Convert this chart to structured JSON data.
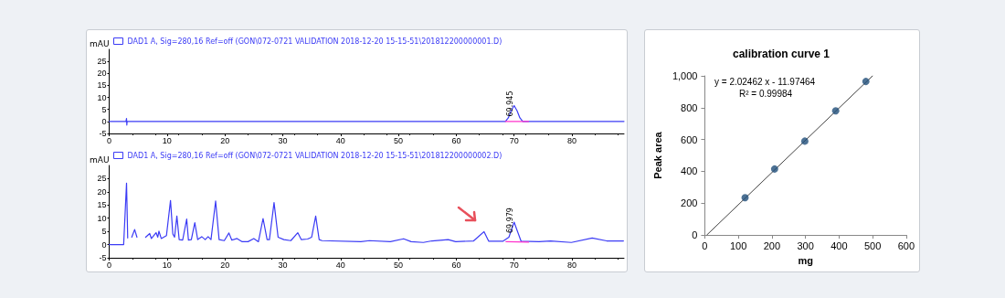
{
  "chart_data": [
    {
      "type": "line",
      "ylabel": "mAU",
      "legend": "top left",
      "grid": false,
      "marker": "none",
      "line_style": "solid",
      "xlim": [
        0,
        89
      ],
      "xticks": [
        0,
        10,
        20,
        30,
        40,
        50,
        60,
        70,
        80
      ],
      "ylim": [
        -5,
        30
      ],
      "yticks": [
        -5,
        0,
        5,
        10,
        15,
        20,
        25
      ],
      "annotations": [
        {
          "text": "69.945",
          "x": 70,
          "y": 6.6
        }
      ],
      "series": [
        {
          "name": "DAD1 A, Sig=280,16 Ref=off (GON\\072-0721 VALIDATION 2018-12-20 15-15-51\\201812200000001.D)",
          "color": "#3b3bf5",
          "x": [
            0,
            2.9,
            3.0,
            3.05,
            3.1,
            68.5,
            69,
            69.5,
            70,
            70.5,
            71,
            71.5,
            89
          ],
          "values": [
            0,
            0,
            1.2,
            -1.5,
            0,
            0,
            1.5,
            4.5,
            6.6,
            4.5,
            1.5,
            0,
            0
          ]
        },
        {
          "color": "#ff33cc",
          "x": [
            68.5,
            72.5
          ],
          "values": [
            0,
            0
          ]
        }
      ]
    },
    {
      "type": "line",
      "ylabel": "mAU",
      "legend": "top left",
      "grid": false,
      "marker": "none",
      "line_style": "solid",
      "xlim": [
        0,
        89
      ],
      "xticks": [
        0,
        10,
        20,
        30,
        40,
        50,
        60,
        70,
        80
      ],
      "ylim": [
        -5,
        30
      ],
      "yticks": [
        -5,
        0,
        5,
        10,
        15,
        20,
        25
      ],
      "annotations": [
        {
          "text": "69.979",
          "x": 70,
          "y": 8.5
        }
      ],
      "series": [
        {
          "name": "DAD1 A, Sig=280,16 Ref=off (GON\\072-0721 VALIDATION 2018-12-20 15-15-51\\201812200000002.D)",
          "color": "#3b3bf5",
          "x": [
            0,
            2.5,
            3.0,
            3.2,
            3.6,
            3.9,
            4.4,
            4.8,
            5.4,
            5.95,
            6.3,
            7.0,
            7.3,
            8.1,
            8.4,
            8.6,
            9.0,
            9.9,
            10.6,
            11.0,
            11.3,
            11.7,
            12.1,
            12.7,
            13.4,
            13.7,
            14.2,
            14.8,
            15.3,
            16.0,
            16.6,
            17.1,
            17.6,
            18.4,
            19.0,
            19.9,
            20.7,
            21.2,
            22.1,
            23.0,
            24.0,
            25.0,
            25.8,
            26.6,
            27.3,
            27.7,
            28.5,
            29.2,
            30.2,
            31.4,
            32.6,
            33.2,
            34.3,
            35.0,
            35.7,
            36.3,
            36.8,
            43.5,
            45.0,
            48.6,
            50.9,
            52.2,
            54.3,
            55.8,
            58.6,
            59.9,
            63.0,
            64.8,
            65.6,
            68.1,
            69.1,
            70.0,
            71.2,
            74.3,
            76.3,
            79.9,
            83.5,
            86.0,
            88.9
          ],
          "values": [
            0,
            0,
            23.3,
            2.5,
            null,
            2.8,
            5.7,
            2.8,
            null,
            null,
            2.8,
            4.2,
            2.3,
            4.5,
            2.8,
            5.1,
            2.3,
            3.4,
            16.7,
            4.0,
            2.8,
            10.8,
            1.9,
            1.7,
            9.7,
            1.7,
            1.9,
            8.3,
            1.9,
            3.0,
            1.9,
            3.0,
            1.9,
            16.5,
            1.9,
            1.5,
            4.4,
            1.7,
            2.3,
            1.1,
            1.1,
            2.3,
            1.1,
            9.9,
            1.9,
            1.9,
            15.9,
            2.8,
            1.9,
            1.5,
            4.5,
            1.9,
            2.1,
            2.8,
            10.8,
            1.9,
            1.5,
            1.1,
            1.5,
            1.1,
            2.2,
            1.1,
            0.8,
            1.4,
            1.9,
            1.1,
            1.4,
            4.9,
            1.3,
            1.3,
            2.8,
            8.5,
            1.3,
            1.1,
            1.4,
            0.8,
            2.5,
            1.4,
            1.4
          ]
        },
        {
          "color": "#ff33cc",
          "x": [
            68.6,
            72.5
          ],
          "values": [
            1.1,
            0.9
          ]
        }
      ]
    },
    {
      "type": "scatter",
      "title": "calibration curve 1",
      "xlabel": "mg",
      "ylabel": "Peak area",
      "grid": false,
      "xlim": [
        0,
        600
      ],
      "xticks": [
        0,
        100,
        200,
        300,
        400,
        500,
        600
      ],
      "ylim": [
        0,
        1000
      ],
      "yticks": [
        0,
        200,
        400,
        600,
        800,
        {
          "value": 1000,
          "label": "1,000"
        }
      ],
      "annotations": [
        "y = 2.02462 x - 11.97464",
        "R² = 0.99984"
      ],
      "series": [
        {
          "color": "#1f4e79",
          "marker": "circle",
          "x": [
            120,
            208,
            298,
            390,
            480
          ],
          "values": [
            235,
            415,
            590,
            780,
            965
          ]
        },
        {
          "type": "line",
          "marker": "none",
          "color": "#404040",
          "x": [
            5.91,
            499.8
          ],
          "values": [
            0,
            1000
          ]
        }
      ]
    }
  ]
}
